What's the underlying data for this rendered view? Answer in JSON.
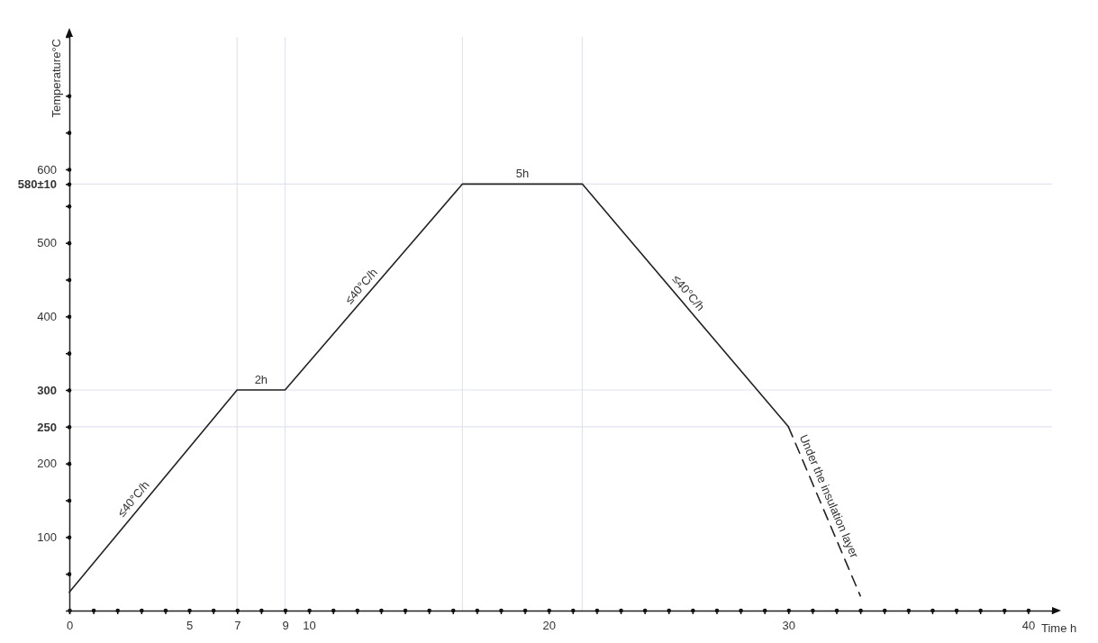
{
  "chart_data": {
    "type": "line",
    "xlabel": "Time h",
    "ylabel": "Temperature°C",
    "xlim": [
      0,
      41
    ],
    "ylim": [
      0,
      780
    ],
    "xticks": [
      0,
      {
        "value": 1,
        "label": null
      },
      {
        "value": 2,
        "label": null
      },
      {
        "value": 3,
        "label": null
      },
      {
        "value": 4,
        "label": null
      },
      5,
      {
        "value": 6,
        "label": null
      },
      7,
      {
        "value": 8,
        "label": null
      },
      9,
      10,
      {
        "value": 11,
        "label": null
      },
      {
        "value": 12,
        "label": null
      },
      {
        "value": 13,
        "label": null
      },
      {
        "value": 14,
        "label": null
      },
      {
        "value": 15,
        "label": null
      },
      {
        "value": 16,
        "label": null
      },
      {
        "value": 17,
        "label": null
      },
      {
        "value": 18,
        "label": null
      },
      {
        "value": 19,
        "label": null
      },
      20,
      {
        "value": 21,
        "label": null
      },
      {
        "value": 22,
        "label": null
      },
      {
        "value": 23,
        "label": null
      },
      {
        "value": 24,
        "label": null
      },
      {
        "value": 25,
        "label": null
      },
      {
        "value": 26,
        "label": null
      },
      {
        "value": 27,
        "label": null
      },
      {
        "value": 28,
        "label": null
      },
      {
        "value": 29,
        "label": null
      },
      30,
      {
        "value": 31,
        "label": null
      },
      {
        "value": 32,
        "label": null
      },
      {
        "value": 33,
        "label": null
      },
      {
        "value": 34,
        "label": null
      },
      {
        "value": 35,
        "label": null
      },
      {
        "value": 36,
        "label": null
      },
      {
        "value": 37,
        "label": null
      },
      {
        "value": 38,
        "label": null
      },
      {
        "value": 39,
        "label": null
      },
      40
    ],
    "yticks": [
      {
        "value": 50,
        "label": null
      },
      100,
      {
        "value": 150,
        "label": null
      },
      200,
      250,
      300,
      {
        "value": 350,
        "label": null
      },
      400,
      {
        "value": 450,
        "label": null
      },
      500,
      {
        "value": 550,
        "label": null
      },
      {
        "value": 580,
        "label": "580±10"
      },
      600,
      {
        "value": 650,
        "label": null
      },
      {
        "value": 700,
        "label": null
      }
    ],
    "series": [
      {
        "color": "#222222",
        "line_style": "solid",
        "x": [
          0,
          7,
          9,
          16.4,
          21.4,
          30
        ],
        "values": [
          25,
          300,
          300,
          580,
          580,
          250
        ]
      },
      {
        "color": "#222222",
        "line_style": "dashed",
        "x": [
          30,
          33
        ],
        "values": [
          250,
          20
        ]
      }
    ],
    "ref_lines": [
      {
        "axis": "y",
        "value": 580,
        "color": "#dfe4ee"
      },
      {
        "axis": "y",
        "value": 300,
        "color": "#dfe4ee"
      },
      {
        "axis": "y",
        "value": 250,
        "color": "#dfe4ee"
      },
      {
        "axis": "x",
        "value": 7,
        "color": "#dfe4ee"
      },
      {
        "axis": "x",
        "value": 9,
        "color": "#dfe4ee"
      },
      {
        "axis": "x",
        "value": 16.4,
        "color": "#dfe4ee"
      },
      {
        "axis": "x",
        "value": 21.4,
        "color": "#dfe4ee"
      }
    ],
    "annotations": [
      {
        "text": "≤40°C/h",
        "x": 3,
        "y": 143
      },
      {
        "text": "2h",
        "x": 8,
        "y": 300
      },
      {
        "text": "≤40°C/h",
        "x": 12.5,
        "y": 432
      },
      {
        "text": "5h",
        "x": 18.9,
        "y": 580
      },
      {
        "text": "≤40°C/h",
        "x": 25.5,
        "y": 423
      },
      {
        "text": "Under the insulation layer",
        "x": 31.3,
        "y": 150
      }
    ]
  }
}
